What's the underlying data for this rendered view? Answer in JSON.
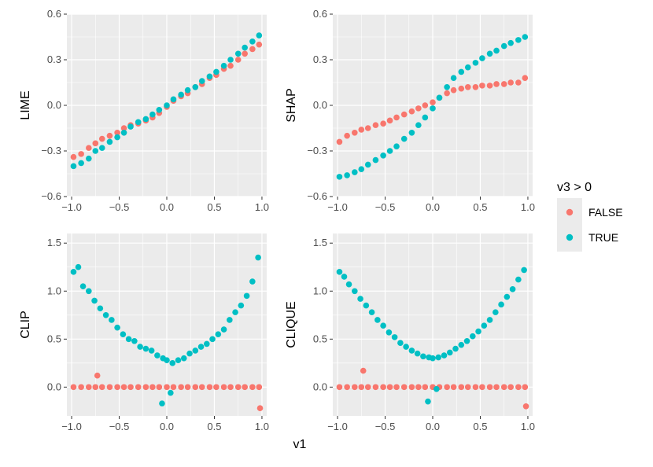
{
  "chart_data": {
    "type": "scatter",
    "layout": "2x2 facet grid",
    "xlabel": "v1",
    "legend": {
      "title": "v3 > 0",
      "placement": "right",
      "entries": [
        {
          "label": "FALSE",
          "color": "#F8766D"
        },
        {
          "label": "TRUE",
          "color": "#00BFC4"
        }
      ]
    },
    "x_ticks": [
      "−1.0",
      "−0.5",
      "0.0",
      "0.5",
      "1.0"
    ],
    "x_tick_values": [
      -1.0,
      -0.5,
      0.0,
      0.5,
      1.0
    ],
    "xlim": [
      -1.05,
      1.05
    ],
    "panels": [
      {
        "ylabel": "LIME",
        "ylim": [
          -0.6,
          0.6
        ],
        "y_ticks": [
          "−0.6",
          "−0.3",
          "0.0",
          "0.3",
          "0.6"
        ],
        "y_tick_values": [
          -0.6,
          -0.3,
          0.0,
          0.3,
          0.6
        ],
        "series": [
          {
            "name": "FALSE",
            "color": "#F8766D",
            "x": [
              -0.98,
              -0.9,
              -0.82,
              -0.75,
              -0.68,
              -0.6,
              -0.52,
              -0.45,
              -0.38,
              -0.3,
              -0.22,
              -0.15,
              -0.08,
              0.0,
              0.07,
              0.15,
              0.22,
              0.3,
              0.37,
              0.45,
              0.52,
              0.6,
              0.67,
              0.75,
              0.82,
              0.9,
              0.97
            ],
            "y": [
              -0.34,
              -0.32,
              -0.28,
              -0.25,
              -0.22,
              -0.2,
              -0.18,
              -0.15,
              -0.13,
              -0.12,
              -0.1,
              -0.08,
              -0.05,
              -0.01,
              0.03,
              0.06,
              0.08,
              0.12,
              0.14,
              0.18,
              0.2,
              0.24,
              0.26,
              0.3,
              0.34,
              0.37,
              0.4
            ]
          },
          {
            "name": "TRUE",
            "color": "#00BFC4",
            "x": [
              -0.98,
              -0.9,
              -0.82,
              -0.75,
              -0.68,
              -0.6,
              -0.52,
              -0.45,
              -0.38,
              -0.3,
              -0.22,
              -0.15,
              -0.08,
              0.0,
              0.07,
              0.15,
              0.22,
              0.3,
              0.37,
              0.45,
              0.52,
              0.6,
              0.67,
              0.75,
              0.82,
              0.9,
              0.97
            ],
            "y": [
              -0.4,
              -0.38,
              -0.35,
              -0.3,
              -0.28,
              -0.24,
              -0.21,
              -0.18,
              -0.14,
              -0.11,
              -0.09,
              -0.06,
              -0.03,
              0.0,
              0.04,
              0.07,
              0.1,
              0.12,
              0.16,
              0.19,
              0.22,
              0.26,
              0.3,
              0.34,
              0.38,
              0.42,
              0.46
            ]
          }
        ]
      },
      {
        "ylabel": "SHAP",
        "ylim": [
          -0.6,
          0.6
        ],
        "y_ticks": [
          "−0.6",
          "−0.3",
          "0.0",
          "0.3",
          "0.6"
        ],
        "y_tick_values": [
          -0.6,
          -0.3,
          0.0,
          0.3,
          0.6
        ],
        "series": [
          {
            "name": "FALSE",
            "color": "#F8766D",
            "x": [
              -0.98,
              -0.9,
              -0.82,
              -0.75,
              -0.68,
              -0.6,
              -0.52,
              -0.45,
              -0.38,
              -0.3,
              -0.22,
              -0.15,
              -0.08,
              0.0,
              0.07,
              0.15,
              0.22,
              0.3,
              0.37,
              0.45,
              0.52,
              0.6,
              0.67,
              0.75,
              0.82,
              0.9,
              0.97
            ],
            "y": [
              -0.24,
              -0.2,
              -0.18,
              -0.16,
              -0.15,
              -0.13,
              -0.12,
              -0.1,
              -0.08,
              -0.06,
              -0.04,
              -0.02,
              0.0,
              0.02,
              0.05,
              0.08,
              0.1,
              0.11,
              0.12,
              0.12,
              0.13,
              0.13,
              0.14,
              0.14,
              0.15,
              0.15,
              0.18
            ]
          },
          {
            "name": "TRUE",
            "color": "#00BFC4",
            "x": [
              -0.98,
              -0.9,
              -0.82,
              -0.75,
              -0.68,
              -0.6,
              -0.52,
              -0.45,
              -0.38,
              -0.3,
              -0.22,
              -0.15,
              -0.08,
              0.0,
              0.07,
              0.15,
              0.22,
              0.3,
              0.37,
              0.45,
              0.52,
              0.6,
              0.67,
              0.75,
              0.82,
              0.9,
              0.97
            ],
            "y": [
              -0.47,
              -0.46,
              -0.44,
              -0.42,
              -0.39,
              -0.36,
              -0.33,
              -0.3,
              -0.27,
              -0.22,
              -0.18,
              -0.13,
              -0.08,
              -0.02,
              0.05,
              0.12,
              0.18,
              0.22,
              0.25,
              0.28,
              0.31,
              0.34,
              0.36,
              0.39,
              0.41,
              0.43,
              0.45
            ]
          }
        ]
      },
      {
        "ylabel": "CLIP",
        "ylim": [
          -0.3,
          1.6
        ],
        "y_ticks": [
          "0.0",
          "0.5",
          "1.0",
          "1.5"
        ],
        "y_tick_values": [
          0.0,
          0.5,
          1.0,
          1.5
        ],
        "series": [
          {
            "name": "FALSE",
            "color": "#F8766D",
            "x": [
              -0.98,
              -0.9,
              -0.82,
              -0.75,
              -0.68,
              -0.6,
              -0.52,
              -0.45,
              -0.38,
              -0.3,
              -0.22,
              -0.15,
              -0.08,
              0.0,
              0.07,
              0.15,
              0.22,
              0.3,
              0.37,
              0.45,
              0.52,
              0.6,
              0.67,
              0.75,
              0.82,
              0.9,
              0.97,
              -0.73,
              0.98
            ],
            "y": [
              0.0,
              0.0,
              0.0,
              0.0,
              0.0,
              0.0,
              0.0,
              0.0,
              0.0,
              0.0,
              0.0,
              0.0,
              0.0,
              0.0,
              0.0,
              0.0,
              0.0,
              0.0,
              0.0,
              0.0,
              0.0,
              0.0,
              0.0,
              0.0,
              0.0,
              0.0,
              0.0,
              0.12,
              -0.22
            ]
          },
          {
            "name": "TRUE",
            "color": "#00BFC4",
            "x": [
              -0.98,
              -0.93,
              -0.88,
              -0.82,
              -0.76,
              -0.7,
              -0.64,
              -0.58,
              -0.52,
              -0.46,
              -0.4,
              -0.34,
              -0.28,
              -0.22,
              -0.16,
              -0.1,
              -0.04,
              0.0,
              0.06,
              0.12,
              0.18,
              0.24,
              0.3,
              0.36,
              0.42,
              0.48,
              0.54,
              0.6,
              0.66,
              0.72,
              0.78,
              0.84,
              0.9,
              0.96,
              -0.05,
              0.04
            ],
            "y": [
              1.2,
              1.25,
              1.05,
              1.0,
              0.9,
              0.82,
              0.75,
              0.7,
              0.62,
              0.55,
              0.5,
              0.48,
              0.42,
              0.4,
              0.38,
              0.33,
              0.3,
              0.28,
              0.25,
              0.28,
              0.3,
              0.35,
              0.38,
              0.42,
              0.45,
              0.5,
              0.55,
              0.6,
              0.7,
              0.78,
              0.85,
              0.95,
              1.1,
              1.35,
              -0.17,
              -0.06
            ]
          }
        ]
      },
      {
        "ylabel": "CLIQUE",
        "ylim": [
          -0.3,
          1.6
        ],
        "y_ticks": [
          "0.0",
          "0.5",
          "1.0",
          "1.5"
        ],
        "y_tick_values": [
          0.0,
          0.5,
          1.0,
          1.5
        ],
        "series": [
          {
            "name": "FALSE",
            "color": "#F8766D",
            "x": [
              -0.98,
              -0.9,
              -0.82,
              -0.75,
              -0.68,
              -0.6,
              -0.52,
              -0.45,
              -0.38,
              -0.3,
              -0.22,
              -0.15,
              -0.08,
              0.0,
              0.07,
              0.15,
              0.22,
              0.3,
              0.37,
              0.45,
              0.52,
              0.6,
              0.67,
              0.75,
              0.82,
              0.9,
              0.97,
              -0.73,
              0.98
            ],
            "y": [
              0.0,
              0.0,
              0.0,
              0.0,
              0.0,
              0.0,
              0.0,
              0.0,
              0.0,
              0.0,
              0.0,
              0.0,
              0.0,
              0.0,
              0.0,
              0.0,
              0.0,
              0.0,
              0.0,
              0.0,
              0.0,
              0.0,
              0.0,
              0.0,
              0.0,
              0.0,
              0.0,
              0.17,
              -0.2
            ]
          },
          {
            "name": "TRUE",
            "color": "#00BFC4",
            "x": [
              -0.98,
              -0.93,
              -0.88,
              -0.82,
              -0.76,
              -0.7,
              -0.64,
              -0.58,
              -0.52,
              -0.46,
              -0.4,
              -0.34,
              -0.28,
              -0.22,
              -0.16,
              -0.1,
              -0.04,
              0.0,
              0.06,
              0.12,
              0.18,
              0.24,
              0.3,
              0.36,
              0.42,
              0.48,
              0.54,
              0.6,
              0.66,
              0.72,
              0.78,
              0.84,
              0.9,
              0.96,
              -0.05,
              0.04
            ],
            "y": [
              1.2,
              1.15,
              1.07,
              1.0,
              0.92,
              0.85,
              0.78,
              0.7,
              0.64,
              0.57,
              0.52,
              0.46,
              0.42,
              0.38,
              0.35,
              0.32,
              0.31,
              0.3,
              0.31,
              0.33,
              0.36,
              0.4,
              0.44,
              0.48,
              0.53,
              0.58,
              0.64,
              0.7,
              0.78,
              0.86,
              0.94,
              1.02,
              1.12,
              1.22,
              -0.15,
              -0.02
            ]
          }
        ]
      }
    ]
  }
}
